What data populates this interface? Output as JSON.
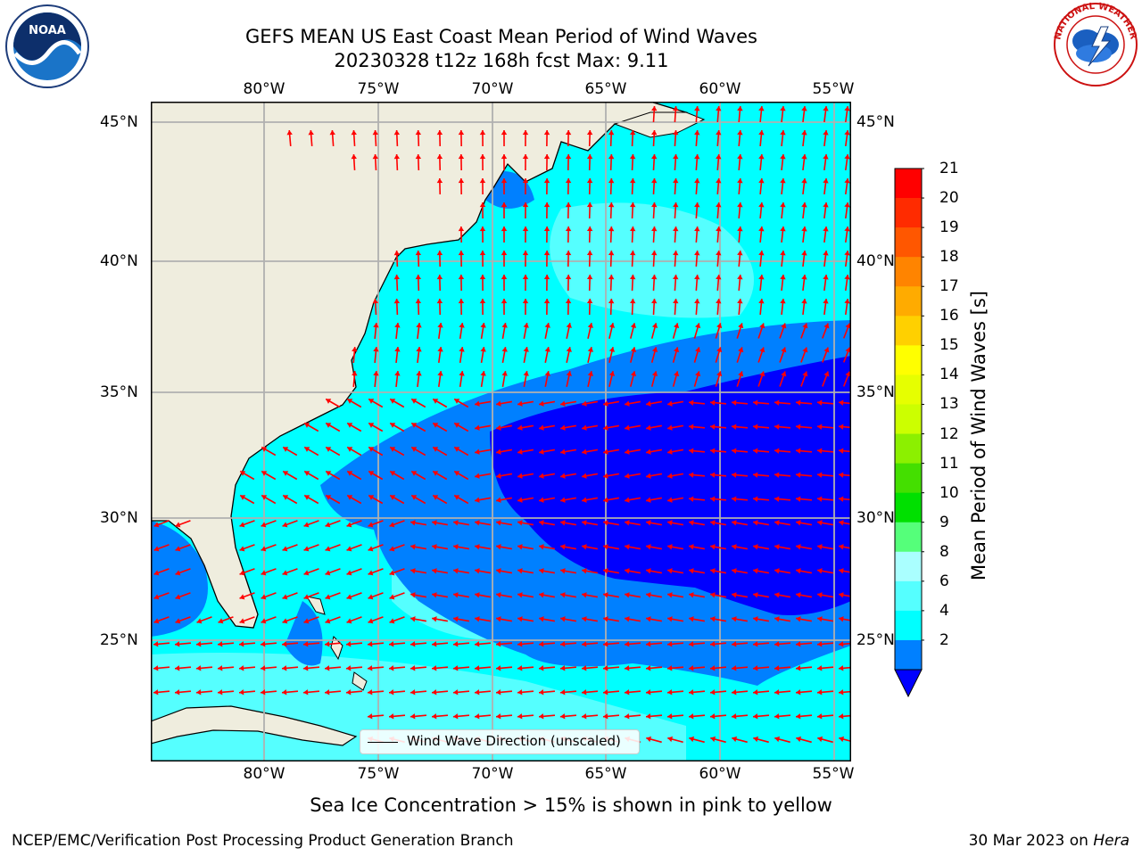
{
  "header": {
    "title_line1": "GEFS MEAN US East Coast Mean Period of Wind Waves",
    "title_line2": "20230328 t12z 168h fcst   Max: 9.11"
  },
  "logos": {
    "left": {
      "text": "NOAA",
      "icon": "noaa-logo-icon"
    },
    "right": {
      "text": "NATIONAL WEATHER SERVICE",
      "icon": "nws-logo-icon"
    }
  },
  "map": {
    "lon_ticks": [
      "80°W",
      "75°W",
      "70°W",
      "65°W",
      "60°W",
      "55°W"
    ],
    "lat_ticks": [
      "45°N",
      "40°N",
      "35°N",
      "30°N",
      "25°N"
    ],
    "lon_range": [
      -85,
      -54.5
    ],
    "lat_range": [
      20.5,
      46
    ],
    "colors": {
      "land": "#efedde",
      "coast": "#000000",
      "grid": "#b0b0b0",
      "arrow": "#ff0000"
    },
    "legend": "Wind Wave Direction (unscaled)"
  },
  "colorbar": {
    "title": "Mean Period of Wind Waves [s]",
    "labels": [
      "21",
      "20",
      "19",
      "18",
      "17",
      "16",
      "15",
      "14",
      "13",
      "12",
      "11",
      "10",
      "9",
      "8",
      "6",
      "4",
      "2"
    ],
    "colors": [
      "#ff0000",
      "#ff2b00",
      "#ff5700",
      "#ff8400",
      "#ffab00",
      "#ffd000",
      "#ffff00",
      "#e6ff00",
      "#ccff00",
      "#8cf000",
      "#44df00",
      "#00e000",
      "#55ff7a",
      "#aaffff",
      "#55ffff",
      "#00ffff",
      "#0080ff"
    ],
    "under_color": "#0000ff"
  },
  "caption": "Sea Ice Concentration > 15% is shown in pink to yellow",
  "footer": {
    "left": "NCEP/EMC/Verification Post Processing Product Generation Branch",
    "right_date": "30 Mar 2023 on ",
    "right_host": "Hera"
  }
}
